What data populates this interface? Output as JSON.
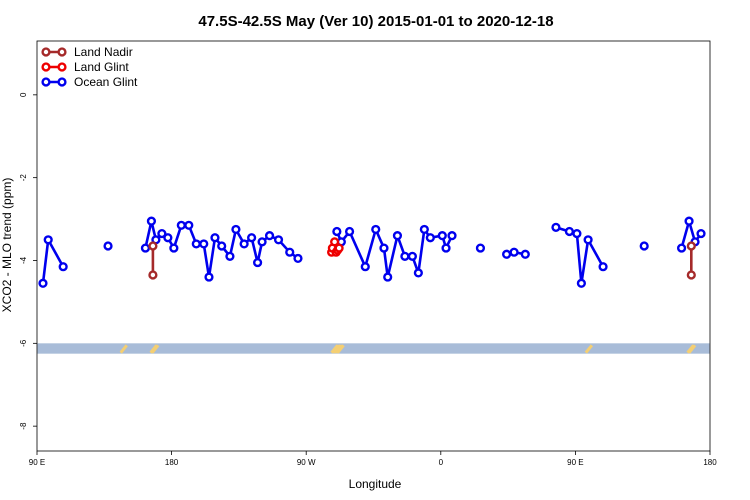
{
  "chart_data": {
    "type": "line",
    "title": "47.5S-42.5S May (Ver 10)   2015-01-01 to 2020-12-18",
    "xlabel": "Longitude",
    "ylabel": "XCO2 - MLO trend (ppm)",
    "x_ticks": [
      {
        "lon": 90,
        "label": "90 E"
      },
      {
        "lon": 180,
        "label": "180"
      },
      {
        "lon": 270,
        "label": "90 W"
      },
      {
        "lon": 360,
        "label": "0"
      },
      {
        "lon": 450,
        "label": "90 E"
      },
      {
        "lon": 540,
        "label": "180"
      }
    ],
    "y_ticks": [
      0,
      -2,
      -4,
      -6,
      -8
    ],
    "xlim": [
      90,
      540
    ],
    "ylim": [
      -8.6,
      1.3
    ],
    "legend_position": "top-left",
    "land_band": {
      "y_from": -6.0,
      "y_to": -6.25,
      "color": "#a8bcd8"
    },
    "land_marks_color": "#f4cf73",
    "land_marks_lon": [
      148,
      168,
      169,
      289,
      290,
      291,
      292,
      293,
      459,
      527,
      528
    ],
    "series": [
      {
        "name": "Land Nadir",
        "color": "#a52a2a",
        "points": [
          [
            167.5,
            -3.65
          ],
          [
            167.5,
            -4.35
          ],
          [
            527.5,
            -3.65
          ],
          [
            527.5,
            -4.35
          ]
        ]
      },
      {
        "name": "Land Glint",
        "color": "#ee0000",
        "points": [
          [
            287,
            -3.8
          ],
          [
            287.5,
            -3.7
          ],
          [
            289,
            -3.55
          ],
          [
            290,
            -3.8
          ],
          [
            291,
            -3.75
          ],
          [
            292,
            -3.7
          ]
        ]
      },
      {
        "name": "Ocean Glint",
        "color": "#0000ee",
        "points": [
          [
            94,
            -4.55
          ],
          [
            97.5,
            -3.5
          ],
          [
            107.5,
            -4.15
          ],
          [
            137.5,
            -3.65
          ],
          [
            162.5,
            -3.7
          ],
          [
            166.5,
            -3.05
          ],
          [
            169.5,
            -3.5
          ],
          [
            173.5,
            -3.35
          ],
          [
            177.5,
            -3.45
          ],
          [
            181.5,
            -3.7
          ],
          [
            186.5,
            -3.15
          ],
          [
            191.5,
            -3.15
          ],
          [
            196.5,
            -3.6
          ],
          [
            201.5,
            -3.6
          ],
          [
            205,
            -4.4
          ],
          [
            209,
            -3.45
          ],
          [
            213.5,
            -3.65
          ],
          [
            219,
            -3.9
          ],
          [
            223,
            -3.25
          ],
          [
            228.5,
            -3.6
          ],
          [
            233.5,
            -3.45
          ],
          [
            237.5,
            -4.05
          ],
          [
            240.5,
            -3.55
          ],
          [
            245.5,
            -3.4
          ],
          [
            251.5,
            -3.5
          ],
          [
            259,
            -3.8
          ],
          [
            264.5,
            -3.95
          ],
          [
            290.5,
            -3.3
          ],
          [
            293.5,
            -3.55
          ],
          [
            299,
            -3.3
          ],
          [
            309.5,
            -4.15
          ],
          [
            316.5,
            -3.25
          ],
          [
            322,
            -3.7
          ],
          [
            324.5,
            -4.4
          ],
          [
            331,
            -3.4
          ],
          [
            336,
            -3.9
          ],
          [
            341,
            -3.9
          ],
          [
            345,
            -4.3
          ],
          [
            349,
            -3.25
          ],
          [
            353,
            -3.45
          ],
          [
            361,
            -3.4
          ],
          [
            363.5,
            -3.7
          ],
          [
            367.5,
            -3.4
          ],
          [
            386.5,
            -3.7
          ],
          [
            404,
            -3.85
          ],
          [
            409,
            -3.8
          ],
          [
            416.5,
            -3.85
          ],
          [
            437,
            -3.2
          ],
          [
            446,
            -3.3
          ],
          [
            451,
            -3.35
          ],
          [
            454,
            -4.55
          ],
          [
            458.5,
            -3.5
          ],
          [
            468.5,
            -4.15
          ],
          [
            496,
            -3.65
          ],
          [
            521,
            -3.7
          ],
          [
            526,
            -3.05
          ],
          [
            530,
            -3.55
          ],
          [
            534,
            -3.35
          ]
        ]
      }
    ]
  }
}
